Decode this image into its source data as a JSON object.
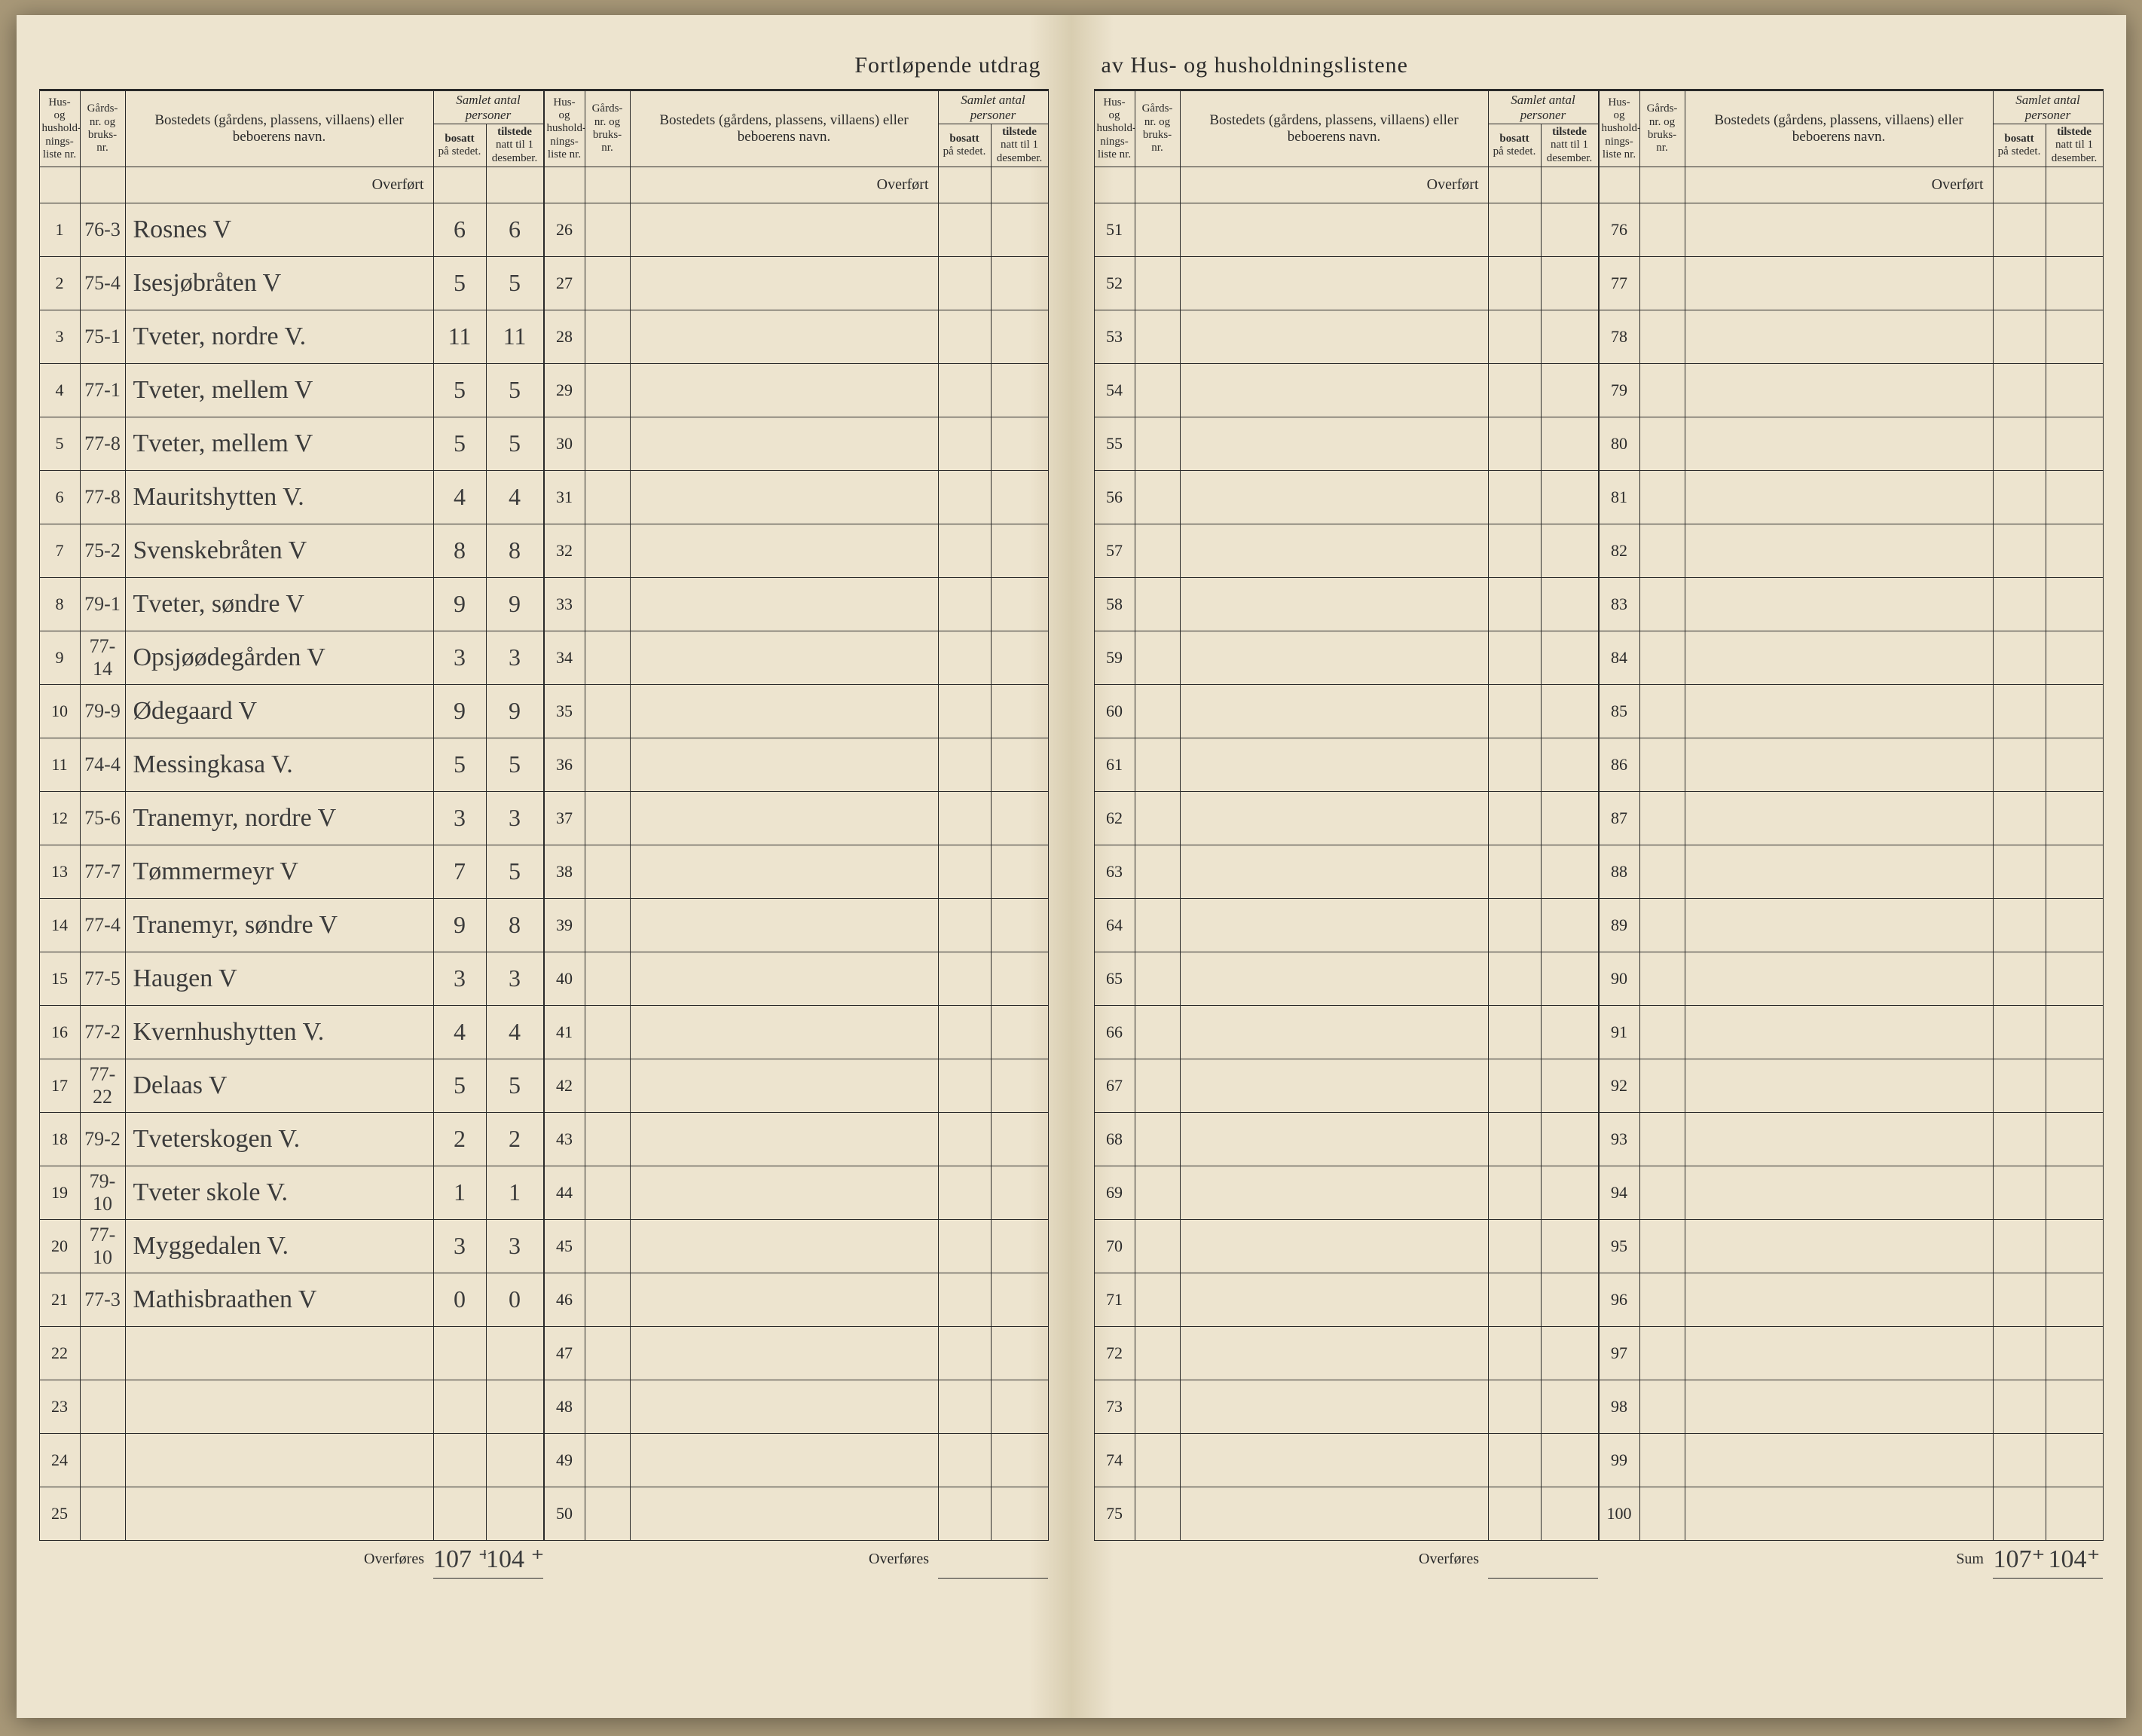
{
  "title_left": "Fortløpende utdrag",
  "title_right": "av Hus- og husholdningslistene",
  "headers": {
    "liste": "Hus- og hushold-nings-liste nr.",
    "gard": "Gårds-nr. og bruks-nr.",
    "bosted": "Bostedets (gårdens, plassens, villaens) eller beboerens navn.",
    "samlet": "Samlet antal personer",
    "bosatt": "bosatt på stedet.",
    "tilstede": "tilstede natt til 1 desember."
  },
  "overfort": "Overført",
  "overfores": "Overføres",
  "sum": "Sum",
  "panels": [
    {
      "start": 1,
      "rows": [
        {
          "n": "1",
          "g": "76-3",
          "b": "Rosnes              V",
          "a": "6",
          "t": "6"
        },
        {
          "n": "2",
          "g": "75-4",
          "b": "Isesjøbråten        V",
          "a": "5",
          "t": "5"
        },
        {
          "n": "3",
          "g": "75-1",
          "b": "Tveter, nordre V.",
          "a": "11",
          "t": "11"
        },
        {
          "n": "4",
          "g": "77-1",
          "b": "Tveter, mellem V",
          "a": "5",
          "t": "5"
        },
        {
          "n": "5",
          "g": "77-8",
          "b": "Tveter, mellem V",
          "a": "5",
          "t": "5"
        },
        {
          "n": "6",
          "g": "77-8",
          "b": "Mauritshytten V.",
          "a": "4",
          "t": "4"
        },
        {
          "n": "7",
          "g": "75-2",
          "b": "Svenskebråten V",
          "a": "8",
          "t": "8"
        },
        {
          "n": "8",
          "g": "79-1",
          "b": "Tveter, søndre V",
          "a": "9",
          "t": "9"
        },
        {
          "n": "9",
          "g": "77-14",
          "b": "Opsjøødegården V",
          "a": "3",
          "t": "3"
        },
        {
          "n": "10",
          "g": "79-9",
          "b": "Ødegaard          V",
          "a": "9",
          "t": "9"
        },
        {
          "n": "11",
          "g": "74-4",
          "b": "Messingkasa V.",
          "a": "5",
          "t": "5"
        },
        {
          "n": "12",
          "g": "75-6",
          "b": "Tranemyr, nordre V",
          "a": "3",
          "t": "3"
        },
        {
          "n": "13",
          "g": "77-7",
          "b": "Tømmermeyr V",
          "a": "7",
          "t": "5"
        },
        {
          "n": "14",
          "g": "77-4",
          "b": "Tranemyr, søndre V",
          "a": "9",
          "t": "8"
        },
        {
          "n": "15",
          "g": "77-5",
          "b": "Haugen            V",
          "a": "3",
          "t": "3"
        },
        {
          "n": "16",
          "g": "77-2",
          "b": "Kvernhushytten V.",
          "a": "4",
          "t": "4"
        },
        {
          "n": "17",
          "g": "77-22",
          "b": "Delaas             V",
          "a": "5",
          "t": "5"
        },
        {
          "n": "18",
          "g": "79-2",
          "b": "Tveterskogen     V.",
          "a": "2",
          "t": "2"
        },
        {
          "n": "19",
          "g": "79-10",
          "b": "Tveter skole    V.",
          "a": "1",
          "t": "1"
        },
        {
          "n": "20",
          "g": "77-10",
          "b": "Myggedalen      V.",
          "a": "3",
          "t": "3"
        },
        {
          "n": "21",
          "g": "77-3",
          "b": "Mathisbraathen V",
          "a": "0",
          "t": "0"
        },
        {
          "n": "22",
          "g": "",
          "b": "",
          "a": "",
          "t": ""
        },
        {
          "n": "23",
          "g": "",
          "b": "",
          "a": "",
          "t": ""
        },
        {
          "n": "24",
          "g": "",
          "b": "",
          "a": "",
          "t": ""
        },
        {
          "n": "25",
          "g": "",
          "b": "",
          "a": "",
          "t": ""
        }
      ],
      "footer_label": "Overføres",
      "footer_a": "107 ⁺",
      "footer_t": "104 ⁺"
    },
    {
      "start": 26,
      "rows": [
        {
          "n": "26"
        },
        {
          "n": "27"
        },
        {
          "n": "28"
        },
        {
          "n": "29"
        },
        {
          "n": "30"
        },
        {
          "n": "31"
        },
        {
          "n": "32"
        },
        {
          "n": "33"
        },
        {
          "n": "34"
        },
        {
          "n": "35"
        },
        {
          "n": "36"
        },
        {
          "n": "37"
        },
        {
          "n": "38"
        },
        {
          "n": "39"
        },
        {
          "n": "40"
        },
        {
          "n": "41"
        },
        {
          "n": "42"
        },
        {
          "n": "43"
        },
        {
          "n": "44"
        },
        {
          "n": "45"
        },
        {
          "n": "46"
        },
        {
          "n": "47"
        },
        {
          "n": "48"
        },
        {
          "n": "49"
        },
        {
          "n": "50"
        }
      ],
      "footer_label": "Overføres"
    },
    {
      "start": 51,
      "rows": [
        {
          "n": "51"
        },
        {
          "n": "52"
        },
        {
          "n": "53"
        },
        {
          "n": "54"
        },
        {
          "n": "55"
        },
        {
          "n": "56"
        },
        {
          "n": "57"
        },
        {
          "n": "58"
        },
        {
          "n": "59"
        },
        {
          "n": "60"
        },
        {
          "n": "61"
        },
        {
          "n": "62"
        },
        {
          "n": "63"
        },
        {
          "n": "64"
        },
        {
          "n": "65"
        },
        {
          "n": "66"
        },
        {
          "n": "67"
        },
        {
          "n": "68"
        },
        {
          "n": "69"
        },
        {
          "n": "70"
        },
        {
          "n": "71"
        },
        {
          "n": "72"
        },
        {
          "n": "73"
        },
        {
          "n": "74"
        },
        {
          "n": "75"
        }
      ],
      "footer_label": "Overføres"
    },
    {
      "start": 76,
      "rows": [
        {
          "n": "76"
        },
        {
          "n": "77"
        },
        {
          "n": "78"
        },
        {
          "n": "79"
        },
        {
          "n": "80"
        },
        {
          "n": "81"
        },
        {
          "n": "82"
        },
        {
          "n": "83"
        },
        {
          "n": "84"
        },
        {
          "n": "85"
        },
        {
          "n": "86"
        },
        {
          "n": "87"
        },
        {
          "n": "88"
        },
        {
          "n": "89"
        },
        {
          "n": "90"
        },
        {
          "n": "91"
        },
        {
          "n": "92"
        },
        {
          "n": "93"
        },
        {
          "n": "94"
        },
        {
          "n": "95"
        },
        {
          "n": "96"
        },
        {
          "n": "97"
        },
        {
          "n": "98"
        },
        {
          "n": "99"
        },
        {
          "n": "100"
        }
      ],
      "footer_label": "Sum",
      "footer_a": "107⁺",
      "footer_t": "104⁺"
    }
  ]
}
